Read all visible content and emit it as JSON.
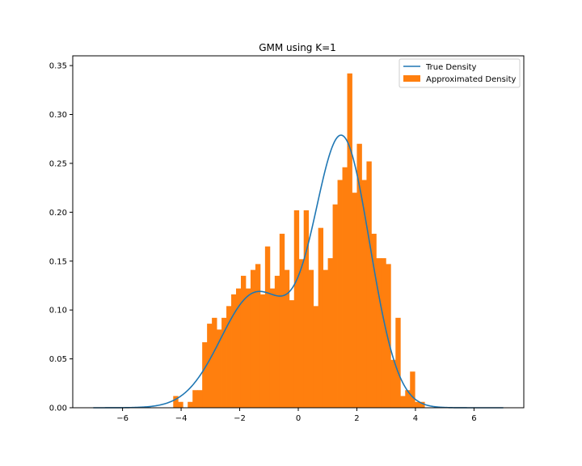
{
  "chart_data": {
    "type": "histogram+line",
    "title": "GMM using K=1",
    "xlabel": "",
    "ylabel": "",
    "xlim": [
      -7.7,
      7.7
    ],
    "ylim": [
      0,
      0.36
    ],
    "x_ticks": [
      -6,
      -4,
      -2,
      0,
      2,
      4,
      6
    ],
    "x_tick_labels": [
      "−6",
      "−4",
      "−2",
      "0",
      "2",
      "4",
      "6"
    ],
    "y_ticks": [
      0.0,
      0.05,
      0.1,
      0.15,
      0.2,
      0.25,
      0.3,
      0.35
    ],
    "y_tick_labels": [
      "0.00",
      "0.05",
      "0.10",
      "0.15",
      "0.20",
      "0.25",
      "0.30",
      "0.35"
    ],
    "grid": false,
    "legend_position": "upper-right",
    "legend": [
      {
        "label": "True Density",
        "kind": "line"
      },
      {
        "label": "Approximated Density",
        "kind": "patch"
      }
    ],
    "colors": {
      "line": "#1f77b4",
      "bars": "#ff7f0e"
    },
    "histogram": {
      "name": "Approximated Density",
      "bin_start": -4.27,
      "bin_width": 0.165,
      "values": [
        0.012,
        0.006,
        0.0,
        0.006,
        0.018,
        0.018,
        0.067,
        0.086,
        0.092,
        0.08,
        0.092,
        0.104,
        0.116,
        0.122,
        0.135,
        0.122,
        0.141,
        0.147,
        0.116,
        0.165,
        0.122,
        0.135,
        0.178,
        0.141,
        0.11,
        0.202,
        0.152,
        0.202,
        0.141,
        0.104,
        0.184,
        0.141,
        0.153,
        0.208,
        0.233,
        0.246,
        0.342,
        0.22,
        0.27,
        0.233,
        0.252,
        0.178,
        0.153,
        0.153,
        0.147,
        0.049,
        0.092,
        0.012,
        0.018,
        0.037,
        0.006,
        0.006
      ]
    },
    "density": {
      "name": "True Density",
      "components": [
        {
          "weight": 0.35,
          "mean": -1.45,
          "sd": 1.2
        },
        {
          "weight": 0.65,
          "mean": 1.5,
          "sd": 0.95
        }
      ],
      "x_range": [
        -7.0,
        7.0
      ]
    }
  }
}
